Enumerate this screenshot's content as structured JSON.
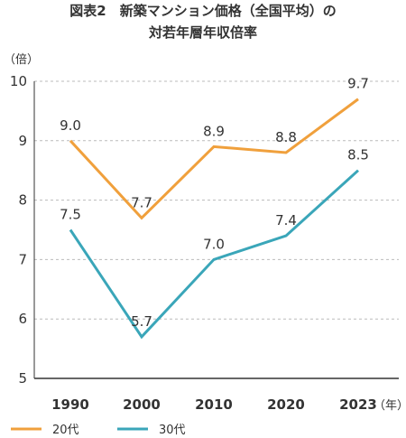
{
  "header": {
    "title_line1": "図表2　新築マンション価格（全国平均）の",
    "title_line2": "対若年層年収倍率"
  },
  "chart_data": {
    "type": "line",
    "title": "図表2　新築マンション価格（全国平均）の 対若年層年収倍率",
    "ylabel": "（倍）",
    "xlabel_unit": "（年）",
    "categories": [
      "1990",
      "2000",
      "2010",
      "2020",
      "2023"
    ],
    "yticks": [
      "5",
      "6",
      "7",
      "8",
      "9",
      "10"
    ],
    "ylim": [
      5,
      10
    ],
    "grid": "horizontal dashed",
    "legend_position": "bottom-left",
    "series": [
      {
        "name": "20代",
        "color": "#F0A03C",
        "values": [
          9.0,
          7.7,
          8.9,
          8.8,
          9.7
        ],
        "labels": [
          "9.0",
          "7.7",
          "8.9",
          "8.8",
          "9.7"
        ]
      },
      {
        "name": "30代",
        "color": "#3AA6B9",
        "values": [
          7.5,
          5.7,
          7.0,
          7.4,
          8.5
        ],
        "labels": [
          "7.5",
          "5.7",
          "7.0",
          "7.4",
          "8.5"
        ]
      }
    ]
  }
}
